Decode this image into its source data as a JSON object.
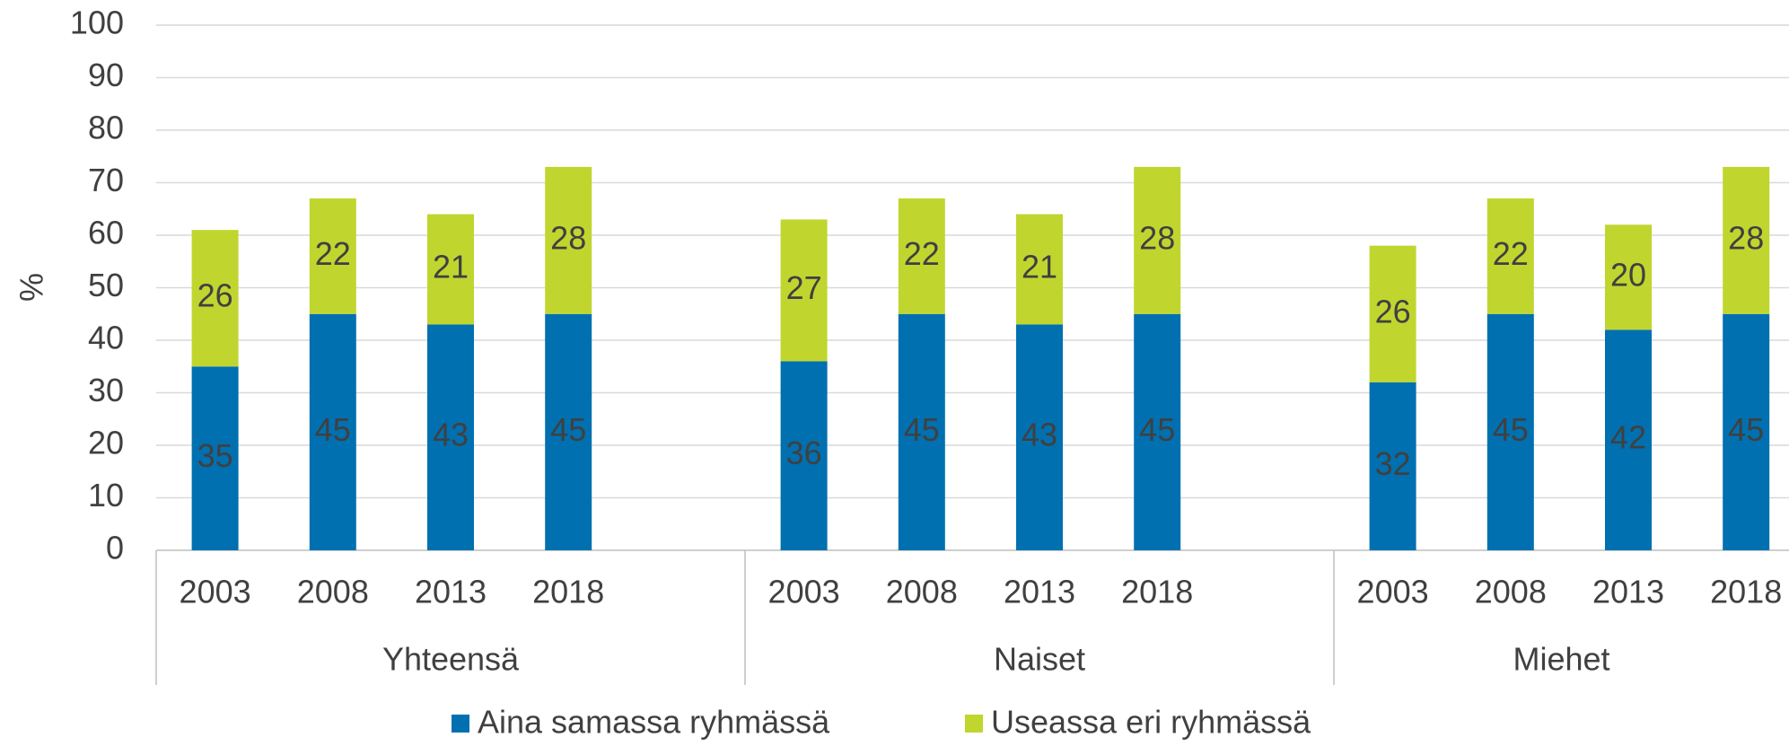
{
  "chart_data": {
    "type": "bar",
    "stacked": true,
    "y_label": "%",
    "groups": [
      "Yhteensä",
      "Naiset",
      "Miehet"
    ],
    "categories": [
      "2003",
      "2008",
      "2013",
      "2018",
      null,
      "2003",
      "2008",
      "2013",
      "2018",
      null,
      "2003",
      "2008",
      "2013",
      "2018",
      null
    ],
    "series": [
      {
        "name": "Aina samassa ryhmässä",
        "color": "#0070b0",
        "values": [
          35,
          45,
          43,
          45,
          null,
          36,
          45,
          43,
          45,
          null,
          32,
          45,
          42,
          45,
          null
        ]
      },
      {
        "name": "Useassa eri ryhmässä",
        "color": "#c0d62f",
        "values": [
          26,
          22,
          21,
          28,
          null,
          27,
          22,
          21,
          28,
          null,
          26,
          22,
          20,
          28,
          null
        ]
      }
    ],
    "ylim": [
      0,
      100
    ],
    "yticks": [
      0,
      10,
      20,
      30,
      40,
      50,
      60,
      70,
      80,
      90,
      100
    ],
    "grid": true,
    "legend": "bottom"
  }
}
